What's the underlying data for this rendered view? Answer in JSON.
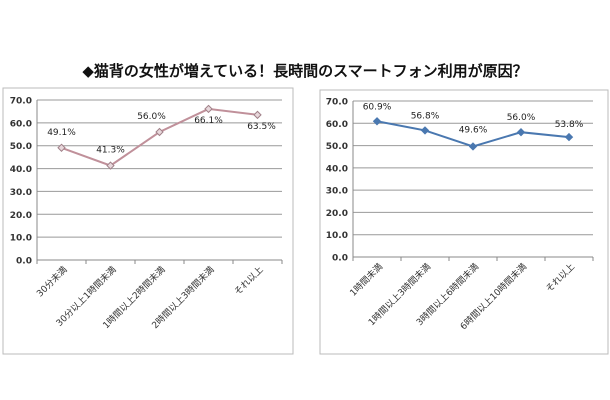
{
  "title": "◆猫背の女性が増えている！長時間のスマートフォン利用が原因？",
  "chart_data": [
    {
      "type": "line",
      "title": "",
      "xlabel": "",
      "ylabel": "",
      "ylim": [
        0,
        70
      ],
      "yticks": [
        "0.0",
        "10.0",
        "20.0",
        "30.0",
        "40.0",
        "50.0",
        "60.0",
        "70.0"
      ],
      "grid": true,
      "color": "#c0909a",
      "categories": [
        "30分未満",
        "30分以上1時間未満",
        "1時間以上2時間未満",
        "2時間以上3時間未満",
        "それ以上"
      ],
      "values": [
        49.1,
        41.3,
        56.0,
        66.1,
        63.5
      ],
      "labels": [
        "49.1%",
        "41.3%",
        "56.0%",
        "66.1%",
        "63.5%"
      ]
    },
    {
      "type": "line",
      "title": "",
      "xlabel": "",
      "ylabel": "",
      "ylim": [
        0,
        70
      ],
      "yticks": [
        "0.0",
        "10.0",
        "20.0",
        "30.0",
        "40.0",
        "50.0",
        "60.0",
        "70.0"
      ],
      "grid": true,
      "color": "#4a78b0",
      "categories": [
        "1時間未満",
        "1時間以上3時間未満",
        "3時間以上6時間未満",
        "6時間以上10時間未満",
        "それ以上"
      ],
      "values": [
        60.9,
        56.8,
        49.6,
        56.0,
        53.8
      ],
      "labels": [
        "60.9%",
        "56.8%",
        "49.6%",
        "56.0%",
        "53.8%"
      ]
    }
  ]
}
